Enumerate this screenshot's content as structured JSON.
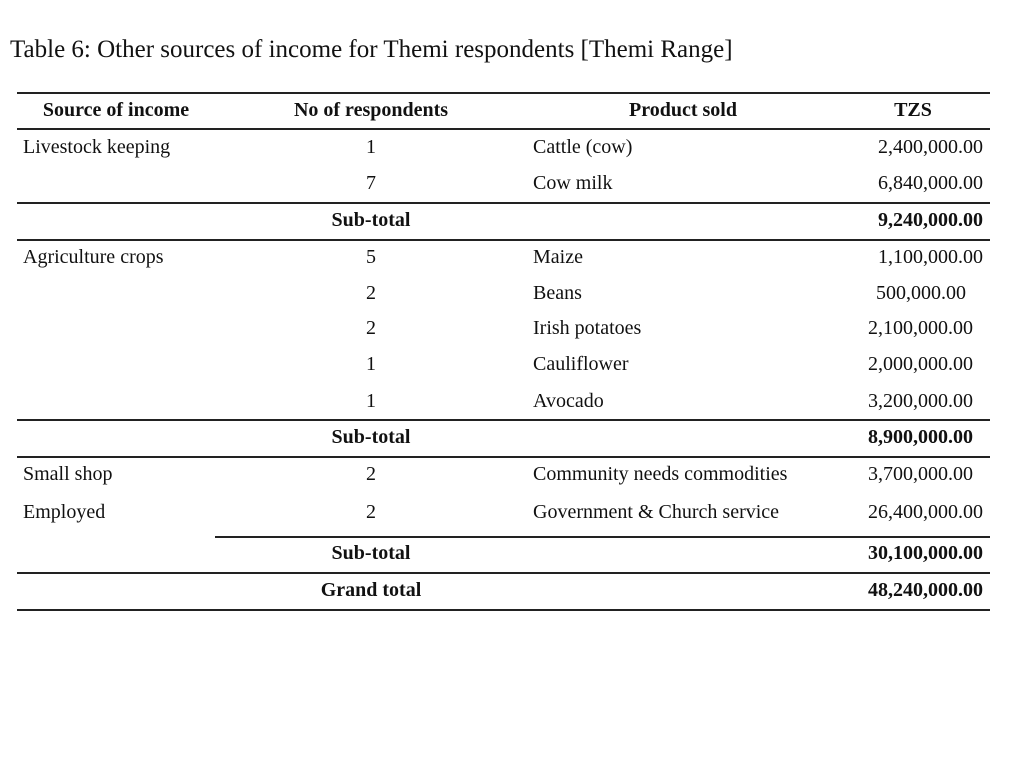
{
  "title": "Table 6: Other sources of income for Themi respondents [Themi Range]",
  "headers": {
    "source": "Source of income",
    "count": "No of respondents",
    "product": "Product sold",
    "tzs": "TZS"
  },
  "rows": [
    {
      "source": "Livestock keeping",
      "count": "1",
      "product": "Cattle (cow)",
      "tzs": "2,400,000.00"
    },
    {
      "source": "",
      "count": "7",
      "product": "Cow milk",
      "tzs": "6,840,000.00"
    },
    {
      "label": "Sub-total",
      "tzs": "9,240,000.00"
    },
    {
      "source": "Agriculture crops",
      "count": "5",
      "product": "Maize",
      "tzs": "1,100,000.00"
    },
    {
      "source": "",
      "count": "2",
      "product": "Beans",
      "tzs": "500,000.00"
    },
    {
      "source": "",
      "count": "2",
      "product": "Irish potatoes",
      "tzs": "2,100,000.00"
    },
    {
      "source": "",
      "count": "1",
      "product": "Cauliflower",
      "tzs": "2,000,000.00"
    },
    {
      "source": "",
      "count": "1",
      "product": "Avocado",
      "tzs": "3,200,000.00"
    },
    {
      "label": "Sub-total",
      "tzs": "8,900,000.00"
    },
    {
      "source": "Small shop",
      "count": "2",
      "product": "Community needs commodities",
      "tzs": "3,700,000.00"
    },
    {
      "source": "Employed",
      "count": "2",
      "product": "Government & Church service",
      "tzs": "26,400,000.00"
    },
    {
      "label": "Sub-total",
      "tzs": "30,100,000.00"
    },
    {
      "label": "Grand total",
      "tzs": "48,240,000.00"
    }
  ]
}
